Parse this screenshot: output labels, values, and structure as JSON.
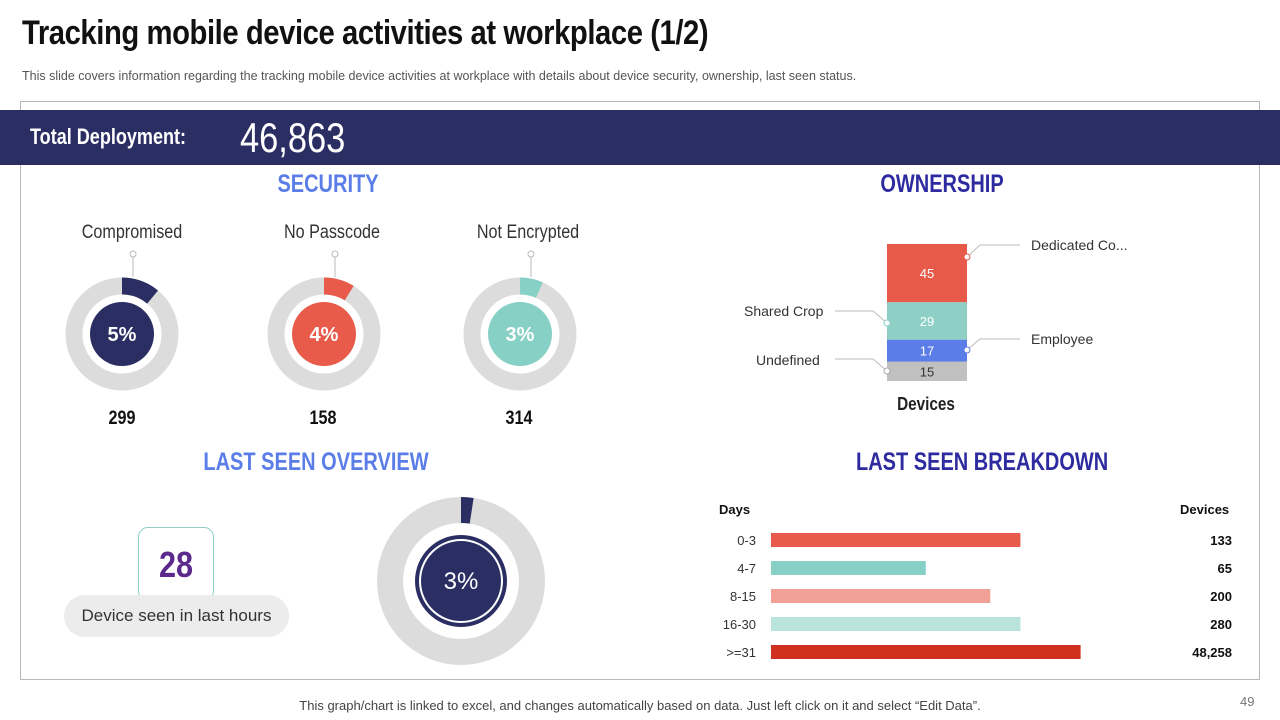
{
  "header": {
    "title": "Tracking mobile device activities at workplace (1/2)",
    "subtitle": "This slide covers information regarding the tracking mobile device activities at workplace with details about device security, ownership, last seen status."
  },
  "deployment": {
    "label": "Total Deployment:",
    "value": "46,863"
  },
  "security": {
    "heading": "SECURITY",
    "items": [
      {
        "label": "Compromised",
        "percent_text": "5%",
        "percent": 5,
        "count": "299",
        "color": "#2b2e63"
      },
      {
        "label": "No Passcode",
        "percent_text": "4%",
        "percent": 4,
        "count": "158",
        "color": "#e85b4b"
      },
      {
        "label": "Not Encrypted",
        "percent_text": "3%",
        "percent": 3,
        "count": "314",
        "color": "#86d0c5"
      }
    ]
  },
  "ownership": {
    "heading": "OWNERSHIP",
    "axis_label": "Devices",
    "labels": {
      "dedicated": "Dedicated Co...",
      "shared": "Shared Crop",
      "employee": "Employee",
      "undefined": "Undefined"
    }
  },
  "last_seen_overview": {
    "heading": "LAST SEEN OVERVIEW",
    "devices_value": "28",
    "devices_caption": "Device seen in last hours",
    "percent_text": "3%",
    "percent": 3
  },
  "last_seen_breakdown": {
    "heading": "LAST SEEN BREAKDOWN",
    "col_days": "Days",
    "col_devices": "Devices"
  },
  "footer": {
    "note": "This graph/chart is linked to excel, and changes automatically based on data. Just left click on it and select “Edit Data”.",
    "page_number": "49"
  },
  "chart_data": [
    {
      "type": "bar",
      "title": "OWNERSHIP",
      "stacked": true,
      "categories": [
        "Devices"
      ],
      "series": [
        {
          "name": "Undefined",
          "values": [
            15
          ],
          "color": "#c0c0c0"
        },
        {
          "name": "Employee",
          "values": [
            17
          ],
          "color": "#5b7de8"
        },
        {
          "name": "Shared Crop",
          "values": [
            29
          ],
          "color": "#8fd0c6"
        },
        {
          "name": "Dedicated Co...",
          "values": [
            45
          ],
          "color": "#e85b4b"
        }
      ]
    },
    {
      "type": "bar",
      "orientation": "horizontal",
      "title": "LAST SEEN BREAKDOWN",
      "xlabel": "Days",
      "ylabel": "Devices",
      "categories": [
        "0-3",
        "4-7",
        "8-15",
        "16-30",
        ">=31"
      ],
      "values": [
        133,
        65,
        200,
        280,
        48258
      ],
      "value_labels": [
        "133",
        "65",
        "200",
        "280",
        "48,258"
      ],
      "bar_lengths_relative": [
        0.58,
        0.36,
        0.51,
        0.58,
        0.72
      ],
      "colors": [
        "#e85b4b",
        "#86d0c5",
        "#f0a096",
        "#b9e3dc",
        "#cf3020"
      ]
    }
  ]
}
